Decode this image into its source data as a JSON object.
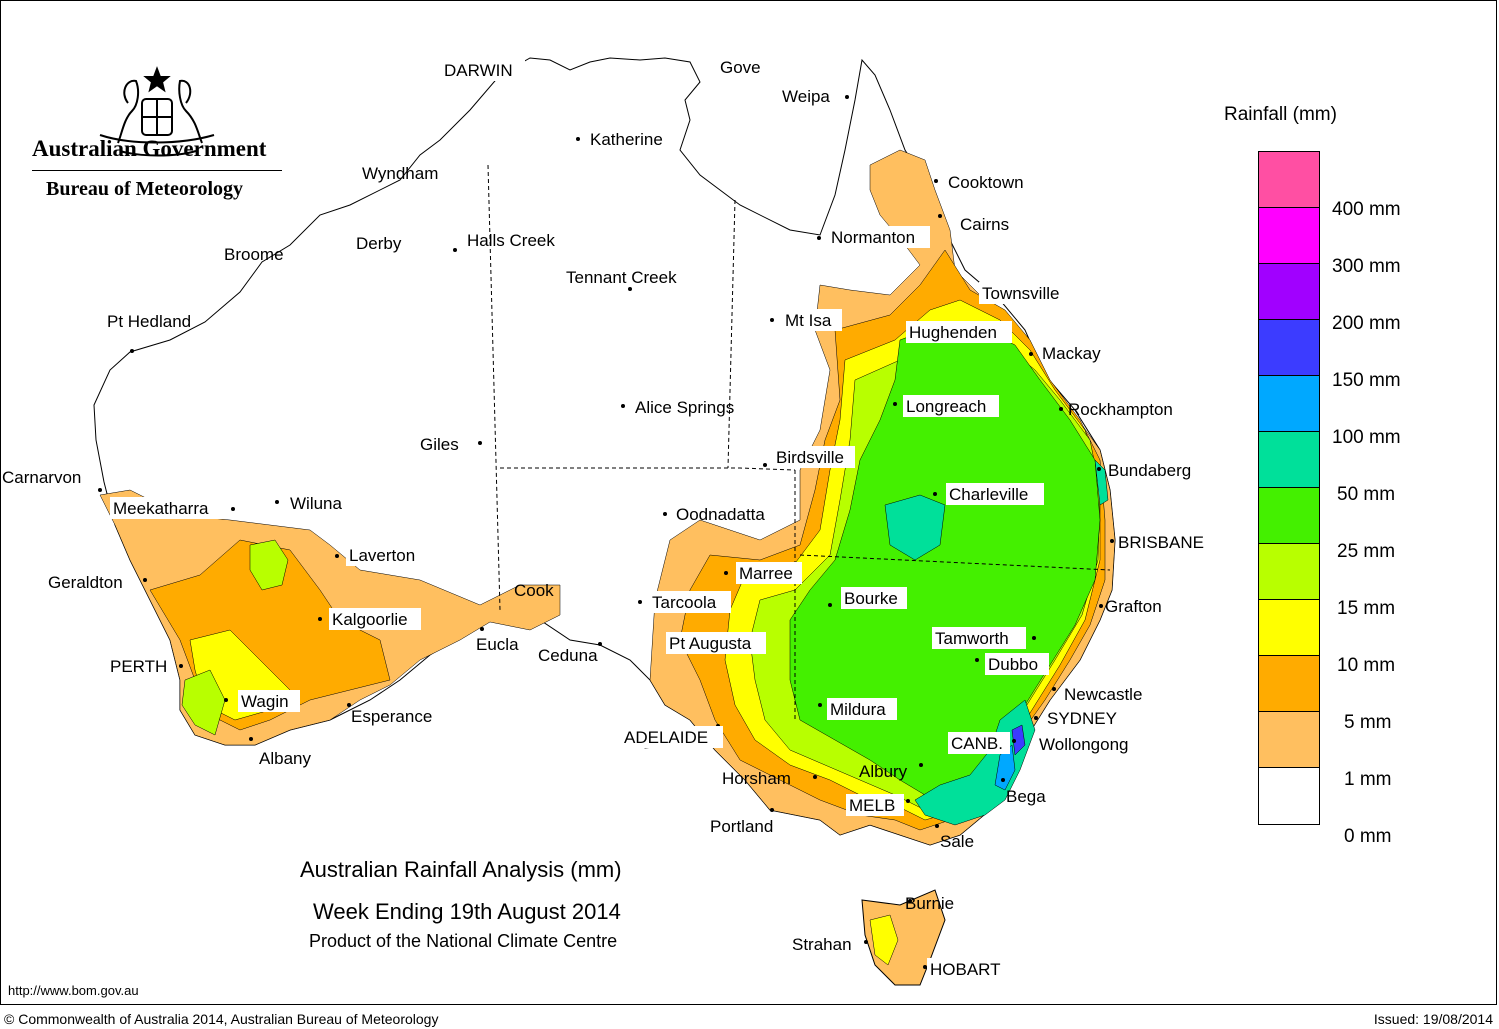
{
  "header": {
    "org": "Australian Government",
    "bureau": "Bureau of Meteorology"
  },
  "legend": {
    "title": "Rainfall (mm)",
    "swatches": [
      {
        "color": "#ff4fa3"
      },
      {
        "color": "#ff00ff"
      },
      {
        "color": "#a100ff"
      },
      {
        "color": "#3c3cff"
      },
      {
        "color": "#00a8ff"
      },
      {
        "color": "#00e09a"
      },
      {
        "color": "#44f000"
      },
      {
        "color": "#b8ff00"
      },
      {
        "color": "#ffff00"
      },
      {
        "color": "#ffab00"
      },
      {
        "color": "#ffbf5f"
      },
      {
        "color": "#ffffff"
      }
    ],
    "labels": [
      "400 mm",
      "300 mm",
      "200 mm",
      "150 mm",
      "100 mm",
      "50 mm",
      "25 mm",
      "15 mm",
      "10 mm",
      "5 mm",
      "1 mm",
      "0 mm"
    ]
  },
  "title": {
    "line1": "Australian Rainfall Analysis (mm)",
    "line2": "Week Ending 19th August 2014",
    "line3": "Product of the National Climate Centre"
  },
  "footer": {
    "url": "http://www.bom.gov.au",
    "copyright": "© Commonwealth of Australia 2014, Australian Bureau of Meteorology",
    "issued": "Issued: 19/08/2014"
  },
  "places": {
    "darwin": "DARWIN",
    "gove": "Gove",
    "weipa": "Weipa",
    "katherine": "Katherine",
    "wyndham": "Wyndham",
    "cooktown": "Cooktown",
    "cairns": "Cairns",
    "normanton": "Normanton",
    "broome": "Broome",
    "derby": "Derby",
    "halls_creek": "Halls Creek",
    "tennant_creek": "Tennant Creek",
    "townsville": "Townsville",
    "pt_hedland": "Pt Hedland",
    "mt_isa": "Mt Isa",
    "hughenden": "Hughenden",
    "mackay": "Mackay",
    "alice_springs": "Alice Springs",
    "longreach": "Longreach",
    "rockhampton": "Rockhampton",
    "giles": "Giles",
    "birdsville": "Birdsville",
    "bundaberg": "Bundaberg",
    "carnarvon": "Carnarvon",
    "meekatharra": "Meekatharra",
    "wiluna": "Wiluna",
    "oodnadatta": "Oodnadatta",
    "charleville": "Charleville",
    "brisbane": "BRISBANE",
    "laverton": "Laverton",
    "marree": "Marree",
    "geraldton": "Geraldton",
    "cook": "Cook",
    "tarcoola": "Tarcoola",
    "bourke": "Bourke",
    "grafton": "Grafton",
    "kalgoorlie": "Kalgoorlie",
    "eucla": "Eucla",
    "pt_augusta": "Pt Augusta",
    "tamworth": "Tamworth",
    "ceduna": "Ceduna",
    "perth": "PERTH",
    "dubbo": "Dubbo",
    "newcastle": "Newcastle",
    "wagin": "Wagin",
    "esperance": "Esperance",
    "mildura": "Mildura",
    "sydney": "SYDNEY",
    "adelaide": "ADELAIDE",
    "canberra": "CANB.",
    "wollongong": "Wollongong",
    "albany": "Albany",
    "horsham": "Horsham",
    "albury": "Albury",
    "bega": "Bega",
    "melbourne": "MELB",
    "portland": "Portland",
    "sale": "Sale",
    "burnie": "Burnie",
    "strahan": "Strahan",
    "hobart": "HOBART"
  }
}
